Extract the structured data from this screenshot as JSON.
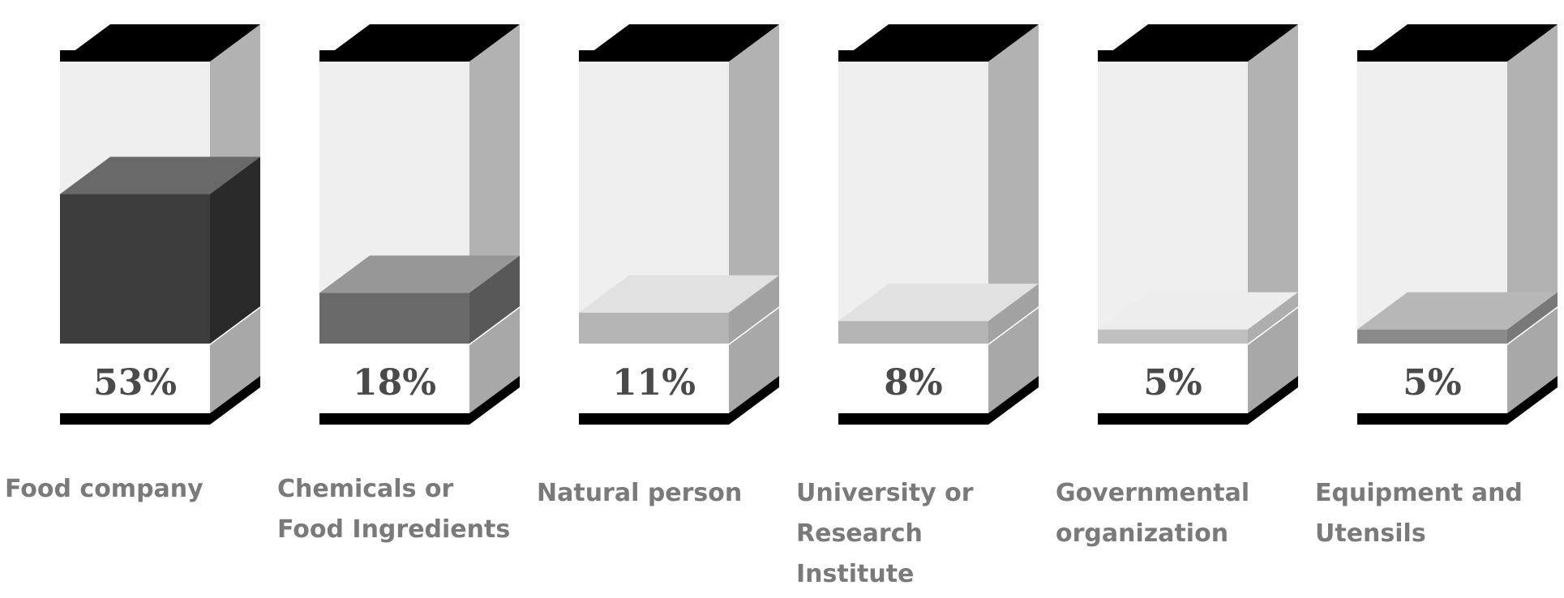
{
  "chart_data": {
    "type": "bar",
    "title": "",
    "xlabel": "",
    "ylabel": "",
    "ylim": [
      0,
      100
    ],
    "grid": false,
    "legend": "none",
    "categories": [
      [
        "Food company"
      ],
      [
        "Chemicals or",
        "Food Ingredients"
      ],
      [
        "Natural person"
      ],
      [
        "University or",
        "Research",
        "Institute"
      ],
      [
        "Governmental",
        "organization"
      ],
      [
        "Equipment and",
        "Utensils"
      ]
    ],
    "values": [
      53,
      18,
      11,
      8,
      5,
      5
    ],
    "labels": [
      "53%",
      "18%",
      "11%",
      "8%",
      "5%",
      "5%"
    ],
    "fill_colors": [
      "#3c3c3c",
      "#6a6a6a",
      "#b4b4b4",
      "#b4b4b4",
      "#c0c0c0",
      "#8a8a8a"
    ]
  }
}
